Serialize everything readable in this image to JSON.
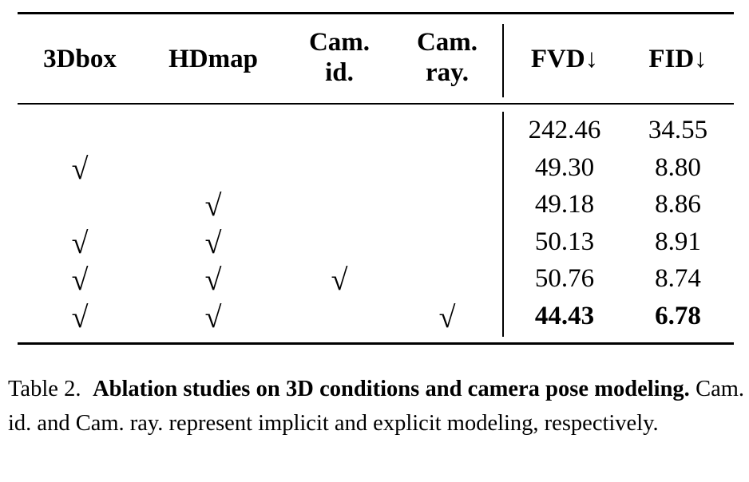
{
  "table": {
    "headers": [
      [
        "3Dbox"
      ],
      [
        "HDmap"
      ],
      [
        "Cam.",
        "id."
      ],
      [
        "Cam.",
        "ray."
      ],
      [
        "FVD↓"
      ],
      [
        "FID↓"
      ]
    ],
    "check_symbol": "√",
    "rows": [
      {
        "threedbox": "",
        "hdmap": "",
        "cam_id": "",
        "cam_ray": "",
        "fvd": "242.46",
        "fid": "34.55",
        "bold": false
      },
      {
        "threedbox": "√",
        "hdmap": "",
        "cam_id": "",
        "cam_ray": "",
        "fvd": "49.30",
        "fid": "8.80",
        "bold": false
      },
      {
        "threedbox": "",
        "hdmap": "√",
        "cam_id": "",
        "cam_ray": "",
        "fvd": "49.18",
        "fid": "8.86",
        "bold": false
      },
      {
        "threedbox": "√",
        "hdmap": "√",
        "cam_id": "",
        "cam_ray": "",
        "fvd": "50.13",
        "fid": "8.91",
        "bold": false
      },
      {
        "threedbox": "√",
        "hdmap": "√",
        "cam_id": "√",
        "cam_ray": "",
        "fvd": "50.76",
        "fid": "8.74",
        "bold": false
      },
      {
        "threedbox": "√",
        "hdmap": "√",
        "cam_id": "",
        "cam_ray": "√",
        "fvd": "44.43",
        "fid": "6.78",
        "bold": true
      }
    ]
  },
  "caption": {
    "label": "Table 2.",
    "title": "Ablation studies on 3D conditions and camera pose modeling.",
    "text": "Cam. id. and Cam. ray. represent implicit and explicit modeling, respectively."
  }
}
